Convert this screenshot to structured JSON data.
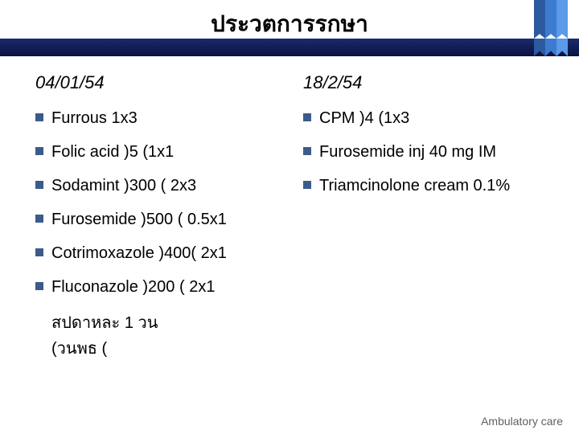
{
  "slide": {
    "title": "ประวตการรกษา",
    "colors": {
      "header_bar": "#0a1240",
      "bullet": "#3c5a8a",
      "accent": [
        "#2c5aa0",
        "#3c7bd0",
        "#5a9ae8"
      ],
      "background": "#ffffff",
      "text": "#000000",
      "footer_text": "#606060"
    },
    "typography": {
      "title_fontsize": 28,
      "title_weight": "bold",
      "date_fontsize": 22,
      "date_style": "italic",
      "body_fontsize": 20,
      "footer_fontsize": 14
    },
    "left": {
      "date": "04/01/54",
      "items": [
        "Furrous  1x3",
        "Folic acid )5  (1x1",
        "Sodamint )300 ( 2x3",
        "Furosemide )500 ( 0.5x1",
        "Cotrimoxazole )400( 2x1",
        "Fluconazole )200 ( 2x1"
      ],
      "extra": [
        "สปดาหละ     1 วน",
        "(วนพธ     ("
      ]
    },
    "right": {
      "date": "18/2/54",
      "items": [
        "CPM )4 (1x3",
        "Furosemide inj 40 mg IM",
        "Triamcinolone cream 0.1%"
      ]
    },
    "footer": "Ambulatory care"
  }
}
